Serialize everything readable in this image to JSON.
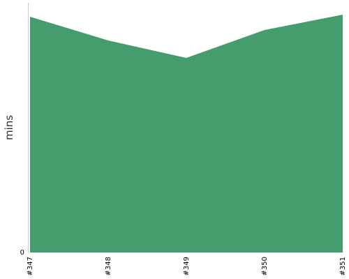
{
  "chart_data": {
    "type": "area",
    "categories": [
      "#347",
      "#348",
      "#349",
      "#350",
      "#351"
    ],
    "values": [
      338,
      304,
      279,
      319,
      341
    ],
    "xlabel": "",
    "ylabel": "mins",
    "ylim": [
      0,
      358
    ],
    "y_ticks": [
      "0"
    ],
    "grid": false,
    "legend": "none",
    "colors": {
      "area_fill": "#459c6d",
      "axis": "#cccccc",
      "text": "#000000"
    }
  }
}
